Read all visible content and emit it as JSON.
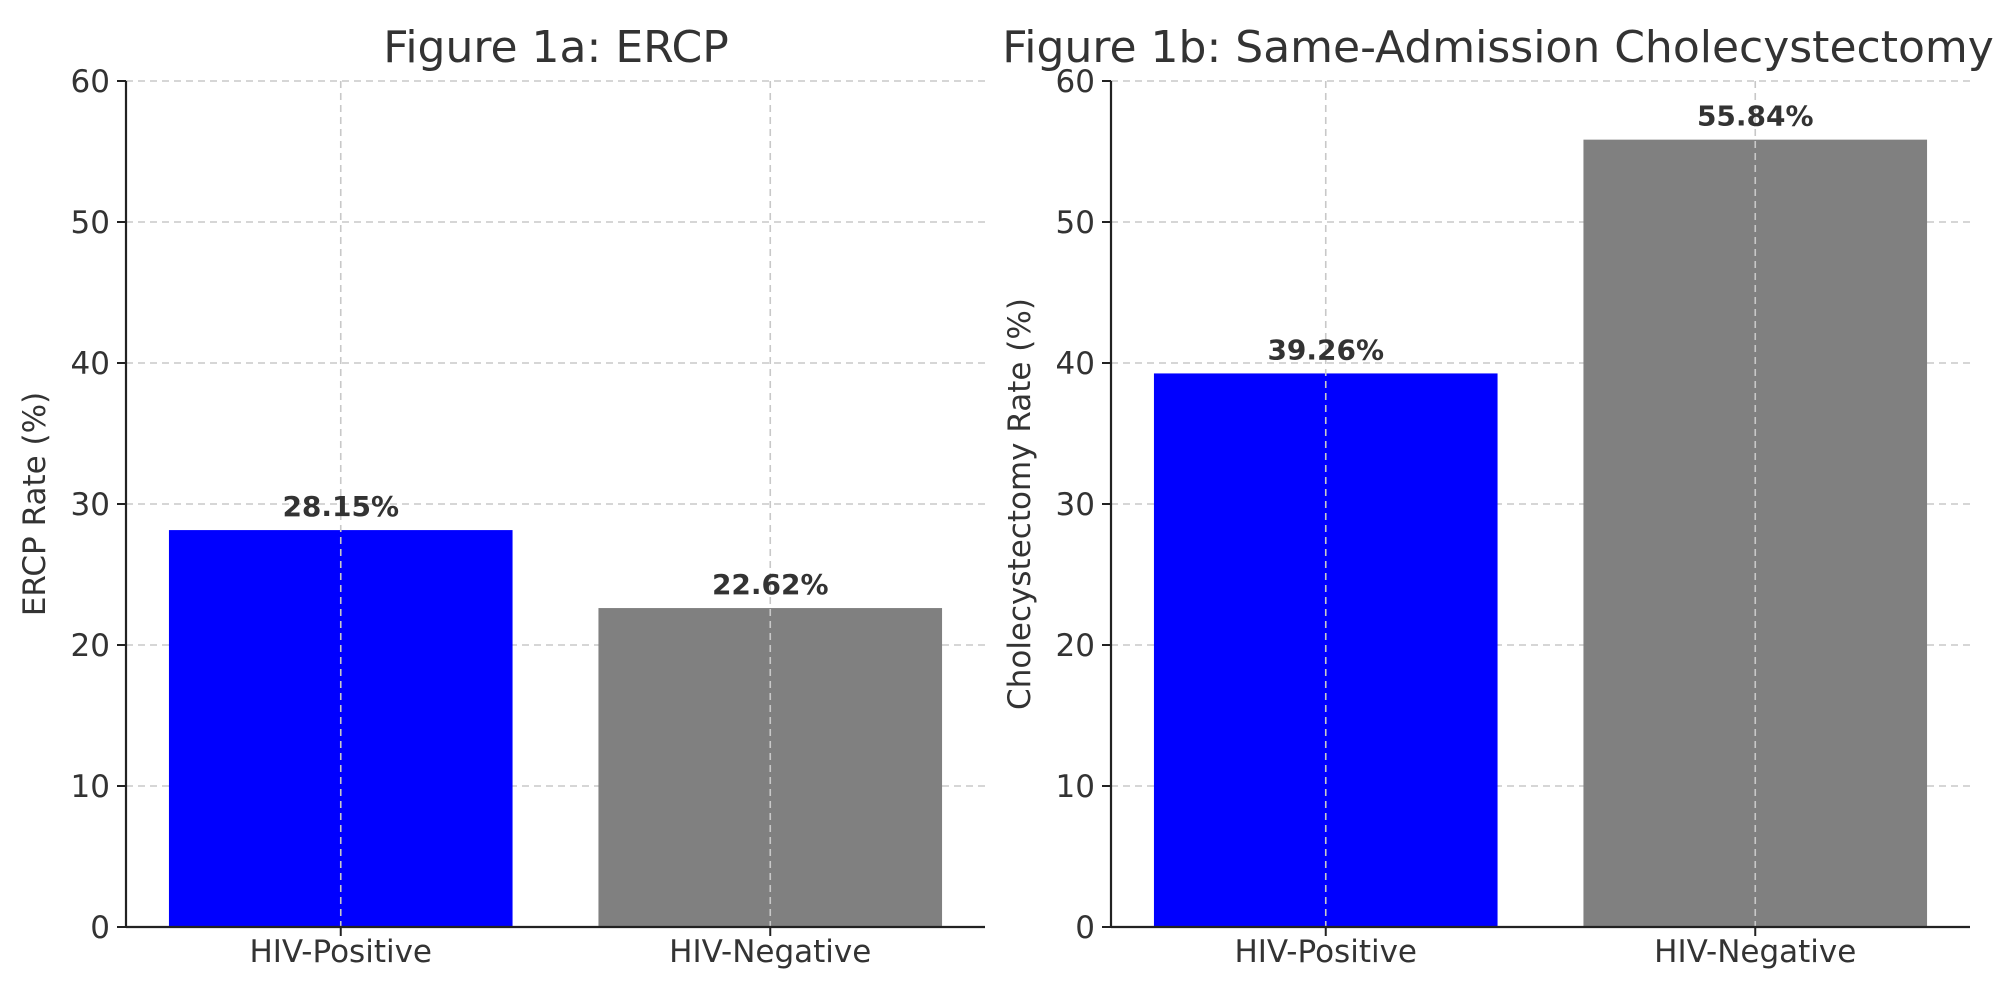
{
  "chart_data": [
    {
      "type": "bar",
      "title": "Figure 1a: ERCP",
      "xlabel": "",
      "ylabel": "ERCP Rate (%)",
      "categories": [
        "HIV-Positive",
        "HIV-Negative"
      ],
      "values": [
        28.15,
        22.62
      ],
      "data_labels": [
        "28.15%",
        "22.62%"
      ],
      "colors": [
        "#0000ff",
        "#808080"
      ],
      "ylim": [
        0,
        60
      ],
      "yticks": [
        0,
        10,
        20,
        30,
        40,
        50,
        60
      ],
      "grid": true,
      "legend": "none"
    },
    {
      "type": "bar",
      "title": "Figure 1b: Same-Admission Cholecystectomy",
      "xlabel": "",
      "ylabel": "Cholecystectomy Rate (%)",
      "categories": [
        "HIV-Positive",
        "HIV-Negative"
      ],
      "values": [
        39.26,
        55.84
      ],
      "data_labels": [
        "39.26%",
        "55.84%"
      ],
      "colors": [
        "#0000ff",
        "#808080"
      ],
      "ylim": [
        0,
        60
      ],
      "yticks": [
        0,
        10,
        20,
        30,
        40,
        50,
        60
      ],
      "grid": true,
      "legend": "none"
    }
  ]
}
